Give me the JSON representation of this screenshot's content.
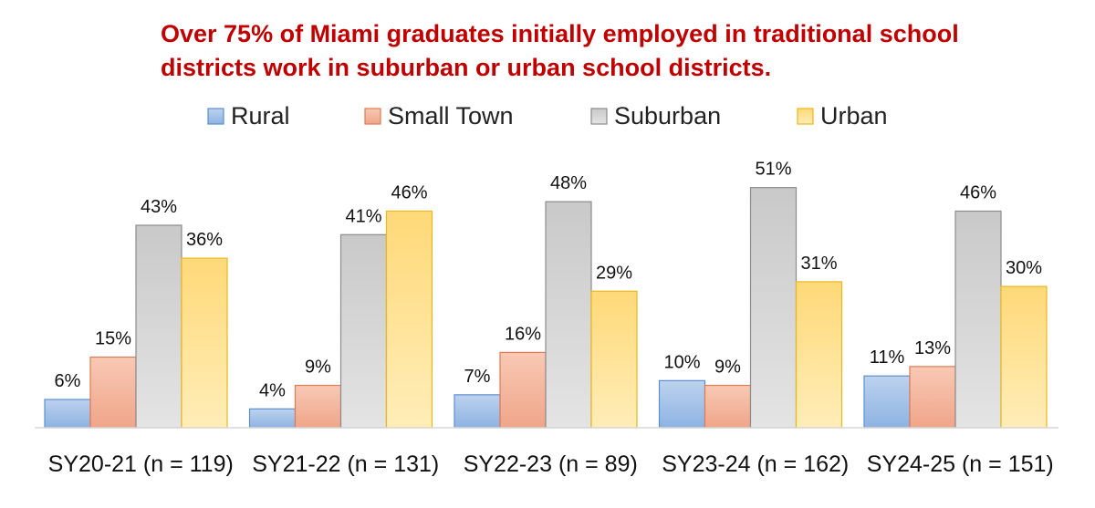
{
  "chart_data": {
    "type": "bar",
    "title": "Over 75% of Miami graduates initially employed in traditional school districts work in suburban or urban school districts.",
    "title_lines": [
      "Over 75% of Miami graduates initially employed in traditional school",
      "districts work in suburban or urban school districts."
    ],
    "title_color": "#C00000",
    "categories": [
      "SY20-21 (n = 119)",
      "SY21-22 (n = 131)",
      "SY22-23 (n = 89)",
      "SY23-24 (n = 162)",
      "SY24-25 (n = 151)"
    ],
    "series": [
      {
        "name": "Rural",
        "values": [
          6,
          4,
          7,
          10,
          11
        ],
        "labels": [
          "6%",
          "4%",
          "7%",
          "10%",
          "11%"
        ],
        "color_top": "#BDD2EE",
        "color_bottom": "#8DB3E2",
        "stroke": "#5B8FD0"
      },
      {
        "name": "Small Town",
        "values": [
          15,
          9,
          16,
          9,
          13
        ],
        "labels": [
          "15%",
          "9%",
          "16%",
          "9%",
          "13%"
        ],
        "color_top": "#F8C9B4",
        "color_bottom": "#F0A58A",
        "stroke": "#E07A55"
      },
      {
        "name": "Suburban",
        "values": [
          43,
          41,
          48,
          51,
          46
        ],
        "labels": [
          "43%",
          "41%",
          "48%",
          "51%",
          "46%"
        ],
        "color_top": "#C9C9C9",
        "color_bottom": "#E4E4E4",
        "stroke": "#8C8C8C"
      },
      {
        "name": "Urban",
        "values": [
          36,
          46,
          29,
          31,
          30
        ],
        "labels": [
          "36%",
          "46%",
          "29%",
          "31%",
          "30%"
        ],
        "color_top": "#FFD978",
        "color_bottom": "#FFEDB8",
        "stroke": "#E8B81E"
      }
    ],
    "ylim": [
      0,
      55
    ],
    "xlabel": "",
    "ylabel": "",
    "grid": false,
    "legend_position": "top"
  }
}
